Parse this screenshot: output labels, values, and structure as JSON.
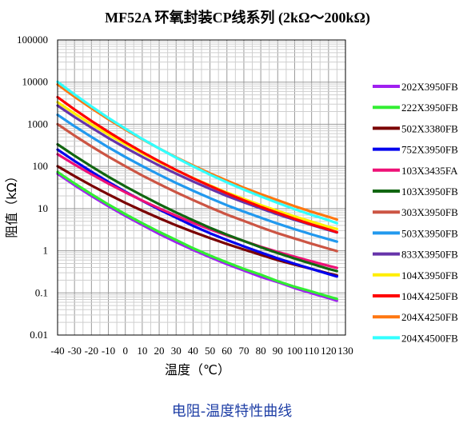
{
  "chart_data": {
    "type": "line",
    "title": "MF52A 环氧封装CP线系列 (2kΩ～200kΩ)",
    "subtitle": "电阻-温度特性曲线",
    "xlabel": "温度（℃）",
    "ylabel": "阻值（kΩ）",
    "xlim": [
      -40,
      130
    ],
    "ylim": [
      0.01,
      100000
    ],
    "yscale": "log",
    "grid": true,
    "legend_position": "right",
    "x_ticks": [
      -40,
      -30,
      -20,
      -10,
      0,
      10,
      20,
      30,
      40,
      50,
      60,
      70,
      80,
      90,
      100,
      110,
      120,
      130
    ],
    "y_ticks": [
      0.01,
      0.1,
      1,
      10,
      100,
      1000,
      10000,
      100000
    ],
    "x_tick_labels": [
      "-40",
      "-30",
      "-20",
      "-10",
      "0",
      "10",
      "20",
      "30",
      "40",
      "50",
      "60",
      "70",
      "80",
      "90",
      "100",
      "110",
      "120",
      "130"
    ],
    "y_tick_labels": [
      "0.01",
      "0.1",
      "1",
      "10",
      "100",
      "1000",
      "10000",
      "100000"
    ],
    "x": [
      -40,
      -30,
      -20,
      -10,
      0,
      10,
      20,
      30,
      40,
      50,
      60,
      70,
      80,
      90,
      100,
      110,
      120,
      125
    ],
    "series": [
      {
        "name": "202X3950FB",
        "color": "#a020f0",
        "values": [
          67.0,
          35.9,
          19.9,
          11.4,
          6.7,
          4.1,
          2.5,
          1.6,
          1.05,
          0.7,
          0.48,
          0.34,
          0.24,
          0.18,
          0.13,
          0.098,
          0.075,
          0.065
        ]
      },
      {
        "name": "222X3950FB",
        "color": "#33ee33",
        "values": [
          73.7,
          39.5,
          21.9,
          12.5,
          7.4,
          4.5,
          2.8,
          1.8,
          1.15,
          0.77,
          0.53,
          0.37,
          0.27,
          0.19,
          0.14,
          0.108,
          0.082,
          0.072
        ]
      },
      {
        "name": "502X3380FB",
        "color": "#7a0000",
        "values": [
          101,
          59,
          35.3,
          21.7,
          13.7,
          8.9,
          5.9,
          4.0,
          2.8,
          2.0,
          1.45,
          1.07,
          0.8,
          0.6,
          0.47,
          0.37,
          0.29,
          0.26
        ]
      },
      {
        "name": "752X3950FB",
        "color": "#0000ee",
        "values": [
          251,
          135,
          75,
          43,
          25.2,
          15.3,
          9.5,
          6.1,
          3.9,
          2.6,
          1.8,
          1.27,
          0.91,
          0.66,
          0.49,
          0.37,
          0.28,
          0.245
        ]
      },
      {
        "name": "103X3435FA",
        "color": "#ee1177",
        "values": [
          195,
          111,
          65,
          39.2,
          24.3,
          15.5,
          10.1,
          6.8,
          4.6,
          3.2,
          2.3,
          1.7,
          1.25,
          0.94,
          0.72,
          0.56,
          0.44,
          0.39
        ]
      },
      {
        "name": "103X3950FB",
        "color": "#116611",
        "values": [
          335,
          180,
          99.9,
          57,
          33.6,
          20.4,
          12.7,
          8.1,
          5.3,
          3.5,
          2.4,
          1.7,
          1.21,
          0.88,
          0.65,
          0.49,
          0.37,
          0.33
        ]
      },
      {
        "name": "303X3950FB",
        "color": "#cc5544",
        "values": [
          1005,
          539,
          299,
          171,
          101,
          61,
          38.1,
          24.4,
          15.9,
          10.6,
          7.2,
          5.1,
          3.6,
          2.6,
          1.95,
          1.47,
          1.12,
          0.98
        ]
      },
      {
        "name": "503X3950FB",
        "color": "#2299ee",
        "values": [
          1675,
          898,
          499,
          285,
          168,
          102,
          63.5,
          40.6,
          26.6,
          17.7,
          12.0,
          8.5,
          6.1,
          4.4,
          3.25,
          2.45,
          1.87,
          1.64
        ]
      },
      {
        "name": "833X3950FB",
        "color": "#6633aa",
        "values": [
          2780,
          1491,
          828,
          473,
          279,
          169,
          105,
          67.4,
          44.1,
          29.4,
          19.9,
          14.1,
          10.1,
          7.3,
          5.4,
          4.1,
          3.1,
          2.72
        ]
      },
      {
        "name": "104X3950FB",
        "color": "#ffee00",
        "values": [
          3350,
          1797,
          998,
          570,
          336,
          204,
          127,
          81.2,
          53.2,
          35.4,
          24.0,
          17.0,
          12.1,
          8.8,
          6.5,
          4.9,
          3.7,
          3.28
        ]
      },
      {
        "name": "104X4250FB",
        "color": "#ff0000",
        "values": [
          4400,
          2250,
          1200,
          660,
          375,
          220,
          133,
          82.6,
          52.6,
          34.3,
          23.0,
          15.7,
          11.0,
          7.9,
          5.7,
          4.2,
          3.2,
          2.75
        ]
      },
      {
        "name": "204X4250FB",
        "color": "#ff7711",
        "values": [
          8800,
          4500,
          2400,
          1320,
          750,
          440,
          266,
          165,
          105,
          68.6,
          46.0,
          31.4,
          22.0,
          15.8,
          11.4,
          8.4,
          6.4,
          5.5
        ]
      },
      {
        "name": "204X4500FB",
        "color": "#33ffff",
        "values": [
          10200,
          5100,
          2650,
          1420,
          790,
          450,
          266,
          161,
          100,
          64.0,
          41.8,
          28.2,
          19.4,
          13.6,
          9.7,
          7.1,
          5.3,
          4.5
        ]
      }
    ]
  }
}
